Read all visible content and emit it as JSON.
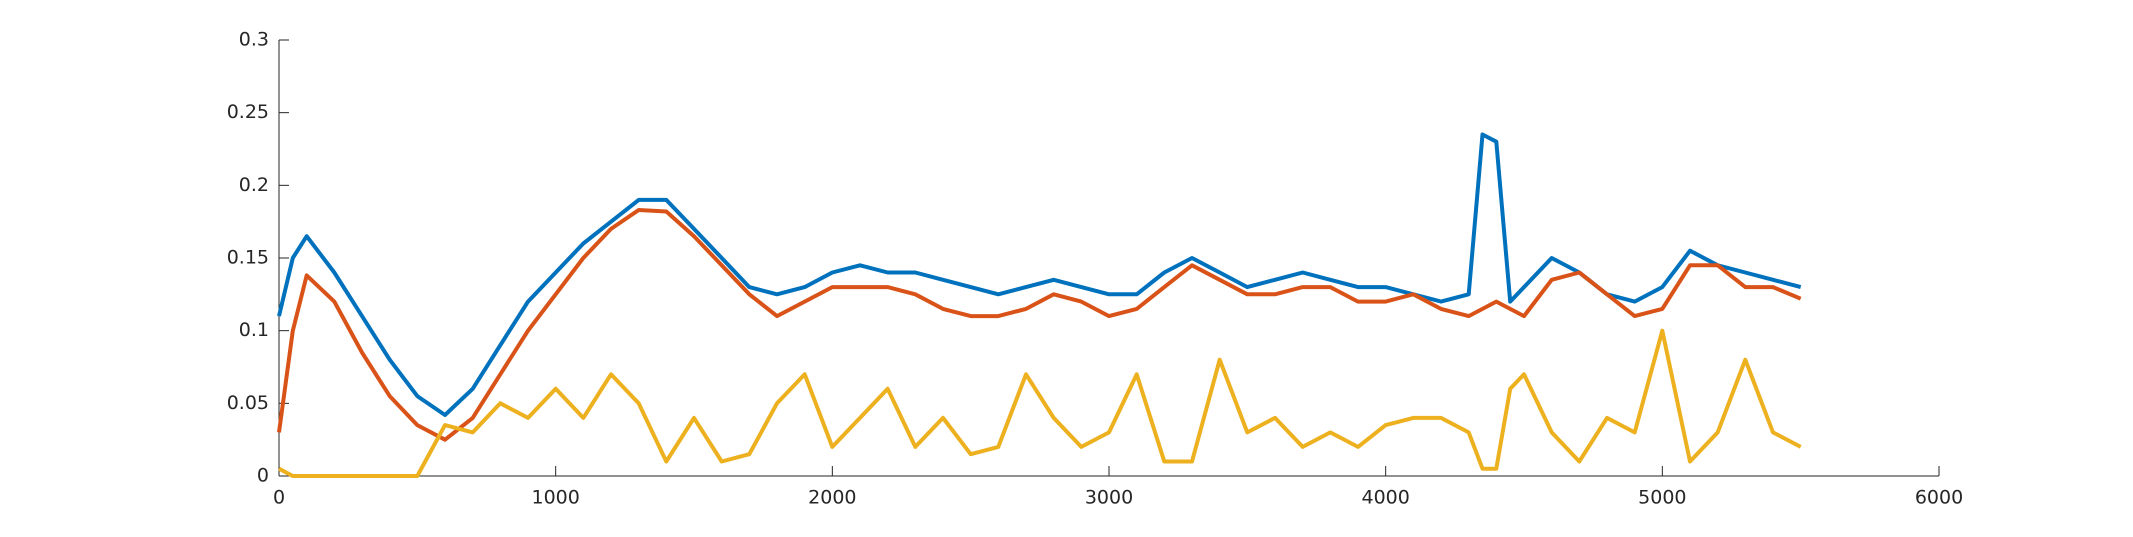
{
  "chart_data": {
    "type": "line",
    "x": [
      0,
      50,
      100,
      200,
      300,
      400,
      500,
      600,
      700,
      800,
      900,
      1000,
      1100,
      1200,
      1300,
      1400,
      1500,
      1600,
      1700,
      1800,
      1900,
      2000,
      2100,
      2200,
      2300,
      2400,
      2500,
      2600,
      2700,
      2800,
      2900,
      3000,
      3100,
      3200,
      3300,
      3400,
      3500,
      3600,
      3700,
      3800,
      3900,
      4000,
      4100,
      4200,
      4300,
      4350,
      4400,
      4450,
      4500,
      4600,
      4700,
      4800,
      4900,
      5000,
      5100,
      5200,
      5300,
      5400,
      5500
    ],
    "series": [
      {
        "color": "#0072BD",
        "values": [
          0.11,
          0.15,
          0.165,
          0.14,
          0.11,
          0.08,
          0.055,
          0.042,
          0.06,
          0.09,
          0.12,
          0.14,
          0.16,
          0.175,
          0.19,
          0.19,
          0.17,
          0.15,
          0.13,
          0.125,
          0.13,
          0.14,
          0.145,
          0.14,
          0.14,
          0.135,
          0.13,
          0.125,
          0.13,
          0.135,
          0.13,
          0.125,
          0.125,
          0.14,
          0.15,
          0.14,
          0.13,
          0.135,
          0.14,
          0.135,
          0.13,
          0.13,
          0.125,
          0.12,
          0.125,
          0.235,
          0.23,
          0.12,
          0.13,
          0.15,
          0.14,
          0.125,
          0.12,
          0.13,
          0.155,
          0.145,
          0.14,
          0.135,
          0.13
        ]
      },
      {
        "color": "#D95319",
        "values": [
          0.03,
          0.1,
          0.138,
          0.12,
          0.085,
          0.055,
          0.035,
          0.025,
          0.04,
          0.07,
          0.1,
          0.125,
          0.15,
          0.17,
          0.183,
          0.182,
          0.165,
          0.145,
          0.125,
          0.11,
          0.12,
          0.13,
          0.13,
          0.13,
          0.125,
          0.115,
          0.11,
          0.11,
          0.115,
          0.125,
          0.12,
          0.11,
          0.115,
          0.13,
          0.145,
          0.135,
          0.125,
          0.125,
          0.13,
          0.13,
          0.12,
          0.12,
          0.125,
          0.115,
          0.11,
          0.115,
          0.12,
          0.115,
          0.11,
          0.135,
          0.14,
          0.125,
          0.11,
          0.115,
          0.145,
          0.145,
          0.13,
          0.13,
          0.122
        ]
      },
      {
        "color": "#EDB120",
        "values": [
          0.005,
          0,
          0,
          0,
          0,
          0,
          0,
          0.035,
          0.03,
          0.05,
          0.04,
          0.06,
          0.04,
          0.07,
          0.05,
          0.01,
          0.04,
          0.01,
          0.015,
          0.05,
          0.07,
          0.02,
          0.04,
          0.06,
          0.02,
          0.04,
          0.015,
          0.02,
          0.07,
          0.04,
          0.02,
          0.03,
          0.07,
          0.01,
          0.01,
          0.08,
          0.03,
          0.04,
          0.02,
          0.03,
          0.02,
          0.035,
          0.04,
          0.04,
          0.03,
          0.005,
          0.005,
          0.06,
          0.07,
          0.03,
          0.01,
          0.04,
          0.03,
          0.1,
          0.01,
          0.03,
          0.08,
          0.03,
          0.02
        ]
      }
    ],
    "xlim": [
      0,
      6000
    ],
    "xticks": [
      0,
      1000,
      2000,
      3000,
      4000,
      5000,
      6000
    ],
    "ylim": [
      0,
      0.3
    ],
    "yticks": [
      0,
      0.05,
      0.1,
      0.15,
      0.2,
      0.25,
      0.3
    ],
    "grid": false
  }
}
